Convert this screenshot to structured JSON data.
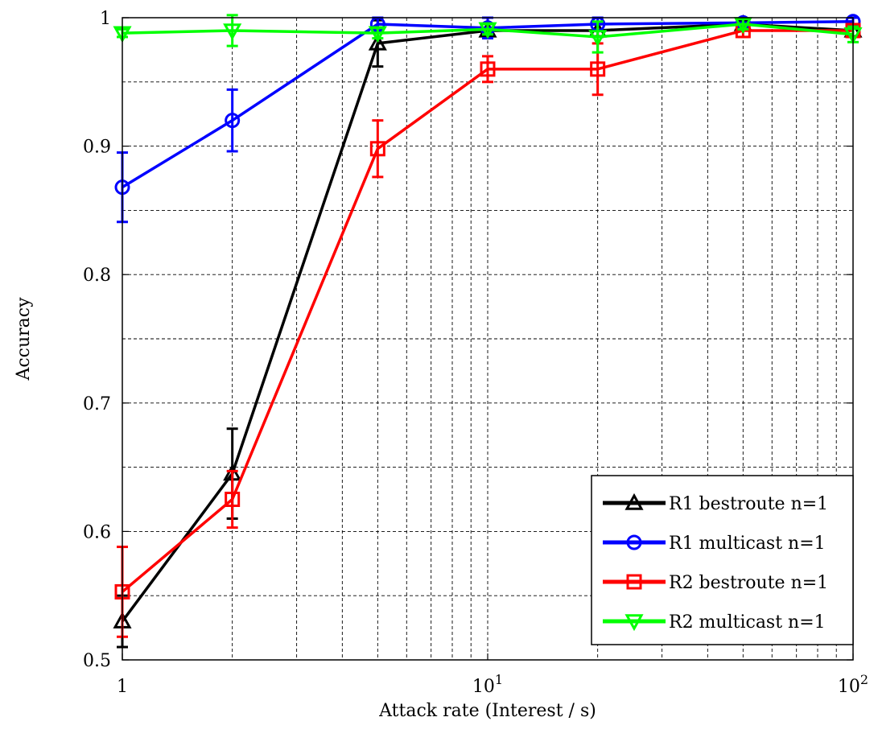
{
  "chart_data": {
    "type": "line",
    "title": "",
    "xlabel": "Attack rate (Interest / s)",
    "ylabel": "Accuracy",
    "x_scale": "log",
    "xlim": [
      1,
      100
    ],
    "ylim": [
      0.5,
      1.0
    ],
    "grid": true,
    "legend_position": "bottom-right",
    "x_tick_labels": [
      {
        "value": 1,
        "base": "1",
        "exp": ""
      },
      {
        "value": 10,
        "base": "10",
        "exp": "1"
      },
      {
        "value": 100,
        "base": "10",
        "exp": "2"
      }
    ],
    "y_ticks": [
      0.5,
      0.6,
      0.7,
      0.8,
      0.9,
      1
    ],
    "y_tick_labels": [
      "0.5",
      "0.6",
      "0.7",
      "0.8",
      "0.9",
      "1"
    ],
    "x": [
      1,
      2,
      5,
      10,
      20,
      50,
      100
    ],
    "series": [
      {
        "name": "R1 bestroute n=1",
        "color": "#000000",
        "marker": "triangle-up",
        "values": [
          0.53,
          0.645,
          0.98,
          0.99,
          0.99,
          0.995,
          0.99
        ],
        "err": [
          0.02,
          0.035,
          0.018,
          0.005,
          0.005,
          0.003,
          0.005
        ]
      },
      {
        "name": "R1 multicast n=1",
        "color": "#0000ff",
        "marker": "circle",
        "values": [
          0.868,
          0.92,
          0.995,
          0.992,
          0.995,
          0.996,
          0.997
        ],
        "err": [
          0.027,
          0.024,
          0.005,
          0.008,
          0.005,
          0.003,
          0.003
        ]
      },
      {
        "name": "R2 bestroute n=1",
        "color": "#ff0000",
        "marker": "square",
        "values": [
          0.553,
          0.625,
          0.898,
          0.96,
          0.96,
          0.99,
          0.99
        ],
        "err": [
          0.035,
          0.022,
          0.022,
          0.01,
          0.02,
          0.005,
          0.005
        ]
      },
      {
        "name": "R2 multicast n=1",
        "color": "#00ff00",
        "marker": "triangle-down",
        "values": [
          0.988,
          0.99,
          0.988,
          0.991,
          0.985,
          0.995,
          0.987
        ],
        "err": [
          0.003,
          0.012,
          0.004,
          0.004,
          0.012,
          0.004,
          0.006
        ]
      }
    ]
  }
}
